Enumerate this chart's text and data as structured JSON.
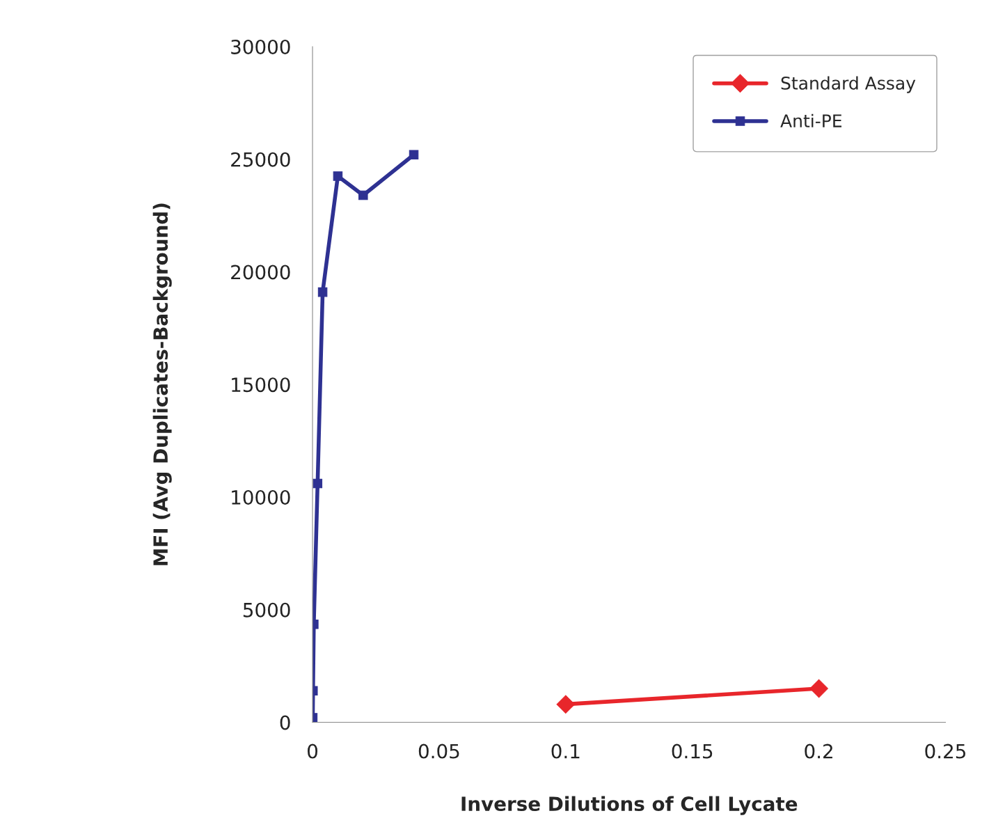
{
  "chart_data": {
    "type": "line",
    "xlabel": "Inverse Dilutions of Cell Lycate",
    "ylabel": "MFI (Avg Duplicates-Background)",
    "series": [
      {
        "name": "Standard Assay",
        "color": "#e8262b",
        "marker": "diamond",
        "x": [
          0.1,
          0.2
        ],
        "values": [
          800,
          1500
        ]
      },
      {
        "name": "Anti-PE",
        "color": "#2e3192",
        "marker": "square",
        "x": [
          0.0001,
          0.0002,
          0.0005,
          0.002,
          0.004,
          0.01,
          0.02,
          0.04
        ],
        "values": [
          200,
          1400,
          4350,
          10600,
          19100,
          24250,
          23400,
          25200
        ]
      }
    ],
    "xlim": [
      0,
      0.25
    ],
    "xticks": [
      0,
      0.05,
      0.1,
      0.15,
      0.2,
      0.25
    ],
    "ylim": [
      0,
      30000
    ],
    "yticks": [
      0,
      5000,
      10000,
      15000,
      20000,
      25000,
      30000
    ],
    "grid": false,
    "legend": "top right",
    "line_style": "solid"
  }
}
